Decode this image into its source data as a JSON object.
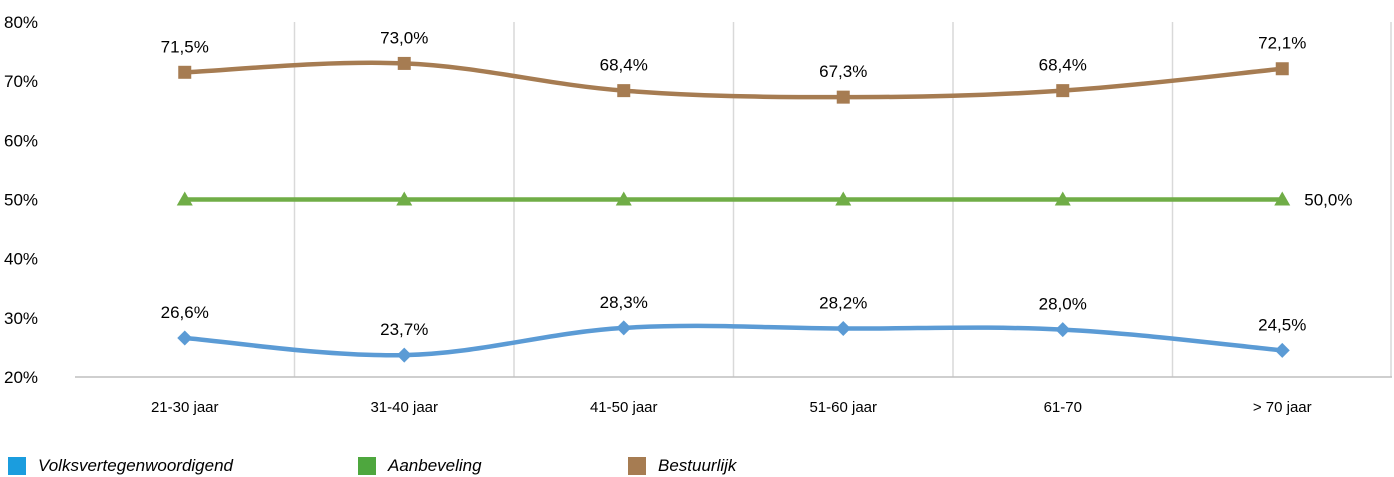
{
  "chart_data": {
    "type": "line",
    "categories": [
      "21-30 jaar",
      "31-40 jaar",
      "41-50 jaar",
      "51-60 jaar",
      "61-70",
      "> 70 jaar"
    ],
    "series": [
      {
        "name": "Volksvertegenwoordigend",
        "color": "#5B9BD5",
        "marker": "diamond",
        "values": [
          26.6,
          23.7,
          28.3,
          28.2,
          28.0,
          24.5
        ],
        "labels": [
          "26,6%",
          "23,7%",
          "28,3%",
          "28,2%",
          "28,0%",
          "24,5%"
        ]
      },
      {
        "name": "Aanbeveling",
        "color": "#70AD47",
        "marker": "triangle",
        "values": [
          50.0,
          50.0,
          50.0,
          50.0,
          50.0,
          50.0
        ],
        "labels": [
          "",
          "",
          "",
          "",
          "",
          "50,0%"
        ]
      },
      {
        "name": "Bestuurlijk",
        "color": "#A67C52",
        "marker": "square",
        "values": [
          71.5,
          73.0,
          68.4,
          67.3,
          68.4,
          72.1
        ],
        "labels": [
          "71,5%",
          "73,0%",
          "68,4%",
          "67,3%",
          "68,4%",
          "72,1%"
        ]
      }
    ],
    "yticks": [
      "20%",
      "30%",
      "40%",
      "50%",
      "60%",
      "70%",
      "80%"
    ],
    "ylim": [
      20,
      80
    ],
    "grid": "vertical",
    "legend": "bottom",
    "title": "",
    "xlabel": "",
    "ylabel": ""
  },
  "legend": {
    "items": [
      {
        "label": "Volksvertegenwoordigend",
        "color": "#1B9DDE"
      },
      {
        "label": "Aanbeveling",
        "color": "#4EA73E"
      },
      {
        "label": "Bestuurlijk",
        "color": "#A67C52"
      }
    ]
  }
}
